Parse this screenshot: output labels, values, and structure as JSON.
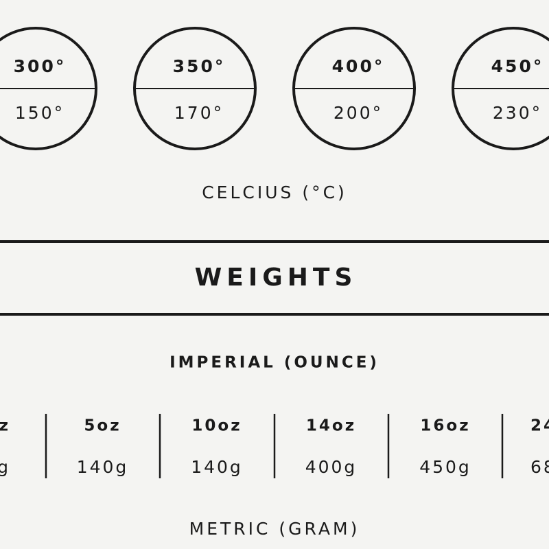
{
  "temperatures": {
    "items": [
      {
        "fahrenheit": "300°",
        "celsius": "150°"
      },
      {
        "fahrenheit": "350°",
        "celsius": "170°"
      },
      {
        "fahrenheit": "400°",
        "celsius": "200°"
      },
      {
        "fahrenheit": "450°",
        "celsius": "230°"
      }
    ],
    "label": "CELCIUS (°C)"
  },
  "weights": {
    "title": "WEIGHTS",
    "imperial_label": "IMPERIAL (OUNCE)",
    "items": [
      {
        "imperial": "z",
        "metric": "g"
      },
      {
        "imperial": "5oz",
        "metric": "140g"
      },
      {
        "imperial": "10oz",
        "metric": "140g"
      },
      {
        "imperial": "14oz",
        "metric": "400g"
      },
      {
        "imperial": "16oz",
        "metric": "450g"
      },
      {
        "imperial": "24",
        "metric": "68"
      }
    ],
    "metric_label": "METRIC (GRAM)"
  }
}
